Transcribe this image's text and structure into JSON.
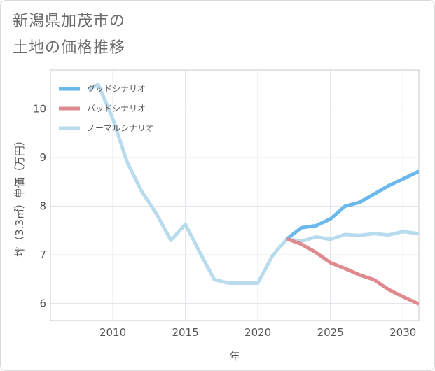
{
  "title": [
    "新潟県加茂市の",
    "土地の価格推移"
  ],
  "chart_data": {
    "type": "line",
    "xlabel": "年",
    "ylabel": "坪（3.3㎡）単価（万円）",
    "xlim": [
      2005.7,
      2031.1
    ],
    "ylim": [
      5.65,
      10.8
    ],
    "xticks": [
      2010,
      2015,
      2020,
      2025,
      2030
    ],
    "yticks": [
      6,
      7,
      8,
      9,
      10
    ],
    "grid": true,
    "legend_position": "top-left",
    "series": [
      {
        "name": "グッドシナリオ",
        "color": "#6ab8ec",
        "x": [
          2022,
          2023,
          2024,
          2025,
          2026,
          2027,
          2028,
          2029,
          2030,
          2031.1
        ],
        "y": [
          7.33,
          7.56,
          7.6,
          7.74,
          8.0,
          8.08,
          8.25,
          8.42,
          8.56,
          8.72
        ]
      },
      {
        "name": "バッドシナリオ",
        "color": "#e08a90",
        "x": [
          2022,
          2023,
          2024,
          2025,
          2026,
          2027,
          2028,
          2029,
          2030,
          2031.1
        ],
        "y": [
          7.33,
          7.22,
          7.05,
          6.84,
          6.72,
          6.59,
          6.49,
          6.29,
          6.14,
          5.99
        ]
      },
      {
        "name": "ノーマルシナリオ",
        "color": "#b8dcee",
        "x": [
          2008.3,
          2009,
          2010,
          2011,
          2012,
          2013,
          2014,
          2015,
          2016,
          2017,
          2018,
          2019,
          2020,
          2021,
          2022,
          2023,
          2024,
          2025,
          2026,
          2027,
          2028,
          2029,
          2030,
          2031.1
        ],
        "y": [
          10.4,
          10.5,
          9.8,
          8.9,
          8.3,
          7.85,
          7.3,
          7.63,
          7.05,
          6.49,
          6.42,
          6.42,
          6.42,
          6.98,
          7.33,
          7.28,
          7.37,
          7.32,
          7.42,
          7.4,
          7.44,
          7.41,
          7.48,
          7.44
        ]
      }
    ]
  }
}
